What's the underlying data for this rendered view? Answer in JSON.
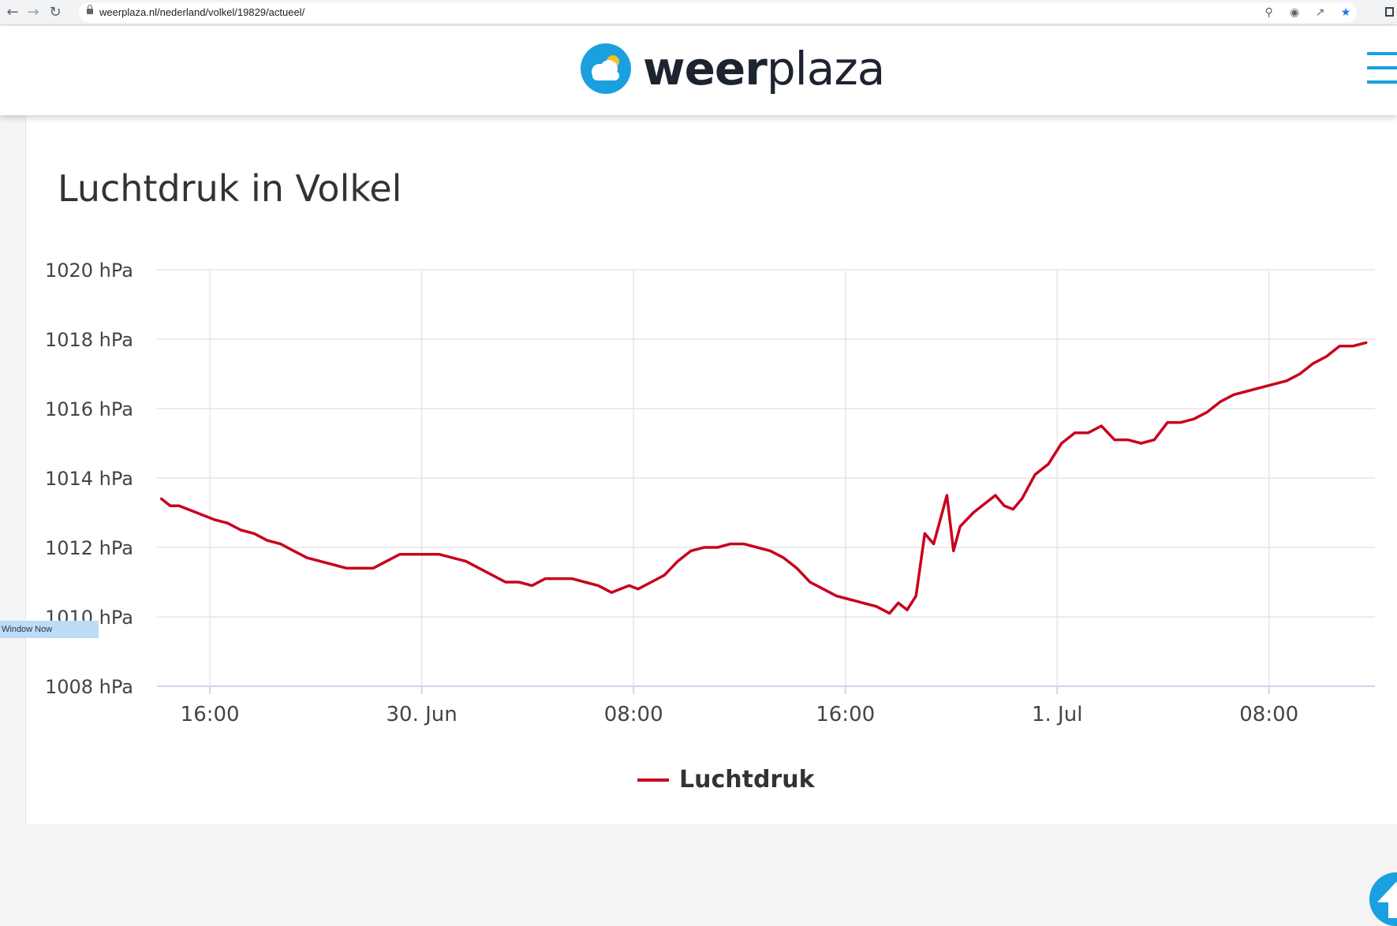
{
  "browser": {
    "url": "weerplaza.nl/nederland/volkel/19829/actueel/",
    "icons": [
      "back-arrow-icon",
      "forward-arrow-icon",
      "reload-icon",
      "lock-icon",
      "zoom-icon",
      "eye-off-icon",
      "share-icon",
      "star-icon",
      "window-icon"
    ]
  },
  "header": {
    "logo_weer": "weer",
    "logo_plaza": "plaza",
    "logo_icon": "cloud-sun-icon",
    "menu_icon": "hamburger-menu-icon"
  },
  "page": {
    "title": "Luchtdruk in Volkel",
    "overlay_tag": "Window Now",
    "scroll_icon": "arrow-up-icon"
  },
  "colors": {
    "accent": "#1aa0df",
    "series": "#c8001e",
    "grid": "#e6e6e6"
  },
  "chart_data": {
    "type": "line",
    "title": "Luchtdruk in Volkel",
    "y_unit": "hPa",
    "ylim": [
      1008,
      1020
    ],
    "y_ticks": [
      1008,
      1010,
      1012,
      1014,
      1016,
      1018,
      1020
    ],
    "y_tick_labels": [
      "1008 hPa",
      "1010 hPa",
      "1012 hPa",
      "1014 hPa",
      "1016 hPa",
      "1018 hPa",
      "1020 hPa"
    ],
    "x_ticks": [
      "2022-06-29T16:00",
      "2022-06-30T00:00",
      "2022-06-30T08:00",
      "2022-06-30T16:00",
      "2022-07-01T00:00",
      "2022-07-01T08:00"
    ],
    "x_tick_labels": [
      "16:00",
      "30. Jun",
      "08:00",
      "16:00",
      "1. Jul",
      "08:00"
    ],
    "xlim": [
      "2022-06-29T14:00",
      "2022-07-01T12:00"
    ],
    "grid": true,
    "legend_position": "bottom-center",
    "series": [
      {
        "name": "Luchtdruk",
        "color": "#c8001e",
        "points": [
          [
            "2022-06-29T14:10",
            1013.4
          ],
          [
            "2022-06-29T14:30",
            1013.2
          ],
          [
            "2022-06-29T14:50",
            1013.2
          ],
          [
            "2022-06-29T15:10",
            1013.1
          ],
          [
            "2022-06-29T15:30",
            1013.0
          ],
          [
            "2022-06-29T15:50",
            1012.9
          ],
          [
            "2022-06-29T16:10",
            1012.8
          ],
          [
            "2022-06-29T16:40",
            1012.7
          ],
          [
            "2022-06-29T17:10",
            1012.5
          ],
          [
            "2022-06-29T17:40",
            1012.4
          ],
          [
            "2022-06-29T18:10",
            1012.2
          ],
          [
            "2022-06-29T18:40",
            1012.1
          ],
          [
            "2022-06-29T19:10",
            1011.9
          ],
          [
            "2022-06-29T19:40",
            1011.7
          ],
          [
            "2022-06-29T20:10",
            1011.6
          ],
          [
            "2022-06-29T20:40",
            1011.5
          ],
          [
            "2022-06-29T21:10",
            1011.4
          ],
          [
            "2022-06-29T21:40",
            1011.4
          ],
          [
            "2022-06-29T22:10",
            1011.4
          ],
          [
            "2022-06-29T22:40",
            1011.6
          ],
          [
            "2022-06-29T23:10",
            1011.8
          ],
          [
            "2022-06-29T23:40",
            1011.8
          ],
          [
            "2022-06-30T00:10",
            1011.8
          ],
          [
            "2022-06-30T00:40",
            1011.8
          ],
          [
            "2022-06-30T01:10",
            1011.7
          ],
          [
            "2022-06-30T01:40",
            1011.6
          ],
          [
            "2022-06-30T02:10",
            1011.4
          ],
          [
            "2022-06-30T02:40",
            1011.2
          ],
          [
            "2022-06-30T03:10",
            1011.0
          ],
          [
            "2022-06-30T03:40",
            1011.0
          ],
          [
            "2022-06-30T04:10",
            1010.9
          ],
          [
            "2022-06-30T04:40",
            1011.1
          ],
          [
            "2022-06-30T05:10",
            1011.1
          ],
          [
            "2022-06-30T05:40",
            1011.1
          ],
          [
            "2022-06-30T06:10",
            1011.0
          ],
          [
            "2022-06-30T06:40",
            1010.9
          ],
          [
            "2022-06-30T07:10",
            1010.7
          ],
          [
            "2022-06-30T07:30",
            1010.8
          ],
          [
            "2022-06-30T07:50",
            1010.9
          ],
          [
            "2022-06-30T08:10",
            1010.8
          ],
          [
            "2022-06-30T08:40",
            1011.0
          ],
          [
            "2022-06-30T09:10",
            1011.2
          ],
          [
            "2022-06-30T09:40",
            1011.6
          ],
          [
            "2022-06-30T10:10",
            1011.9
          ],
          [
            "2022-06-30T10:40",
            1012.0
          ],
          [
            "2022-06-30T11:10",
            1012.0
          ],
          [
            "2022-06-30T11:40",
            1012.1
          ],
          [
            "2022-06-30T12:10",
            1012.1
          ],
          [
            "2022-06-30T12:40",
            1012.0
          ],
          [
            "2022-06-30T13:10",
            1011.9
          ],
          [
            "2022-06-30T13:40",
            1011.7
          ],
          [
            "2022-06-30T14:10",
            1011.4
          ],
          [
            "2022-06-30T14:40",
            1011.0
          ],
          [
            "2022-06-30T15:10",
            1010.8
          ],
          [
            "2022-06-30T15:40",
            1010.6
          ],
          [
            "2022-06-30T16:10",
            1010.5
          ],
          [
            "2022-06-30T16:40",
            1010.4
          ],
          [
            "2022-06-30T17:10",
            1010.3
          ],
          [
            "2022-06-30T17:40",
            1010.1
          ],
          [
            "2022-06-30T18:00",
            1010.4
          ],
          [
            "2022-06-30T18:20",
            1010.2
          ],
          [
            "2022-06-30T18:40",
            1010.6
          ],
          [
            "2022-06-30T19:00",
            1012.4
          ],
          [
            "2022-06-30T19:20",
            1012.1
          ],
          [
            "2022-06-30T19:50",
            1013.5
          ],
          [
            "2022-06-30T20:05",
            1011.9
          ],
          [
            "2022-06-30T20:20",
            1012.6
          ],
          [
            "2022-06-30T20:50",
            1013.0
          ],
          [
            "2022-06-30T21:20",
            1013.3
          ],
          [
            "2022-06-30T21:40",
            1013.5
          ],
          [
            "2022-06-30T22:00",
            1013.2
          ],
          [
            "2022-06-30T22:20",
            1013.1
          ],
          [
            "2022-06-30T22:40",
            1013.4
          ],
          [
            "2022-06-30T23:10",
            1014.1
          ],
          [
            "2022-06-30T23:40",
            1014.4
          ],
          [
            "2022-07-01T00:10",
            1015.0
          ],
          [
            "2022-07-01T00:40",
            1015.3
          ],
          [
            "2022-07-01T01:10",
            1015.3
          ],
          [
            "2022-07-01T01:40",
            1015.5
          ],
          [
            "2022-07-01T02:10",
            1015.1
          ],
          [
            "2022-07-01T02:40",
            1015.1
          ],
          [
            "2022-07-01T03:10",
            1015.0
          ],
          [
            "2022-07-01T03:40",
            1015.1
          ],
          [
            "2022-07-01T04:10",
            1015.6
          ],
          [
            "2022-07-01T04:40",
            1015.6
          ],
          [
            "2022-07-01T05:10",
            1015.7
          ],
          [
            "2022-07-01T05:40",
            1015.9
          ],
          [
            "2022-07-01T06:10",
            1016.2
          ],
          [
            "2022-07-01T06:40",
            1016.4
          ],
          [
            "2022-07-01T07:10",
            1016.5
          ],
          [
            "2022-07-01T07:40",
            1016.6
          ],
          [
            "2022-07-01T08:10",
            1016.7
          ],
          [
            "2022-07-01T08:40",
            1016.8
          ],
          [
            "2022-07-01T09:10",
            1017.0
          ],
          [
            "2022-07-01T09:40",
            1017.3
          ],
          [
            "2022-07-01T10:10",
            1017.5
          ],
          [
            "2022-07-01T10:40",
            1017.8
          ],
          [
            "2022-07-01T11:10",
            1017.8
          ],
          [
            "2022-07-01T11:40",
            1017.9
          ]
        ]
      }
    ]
  }
}
